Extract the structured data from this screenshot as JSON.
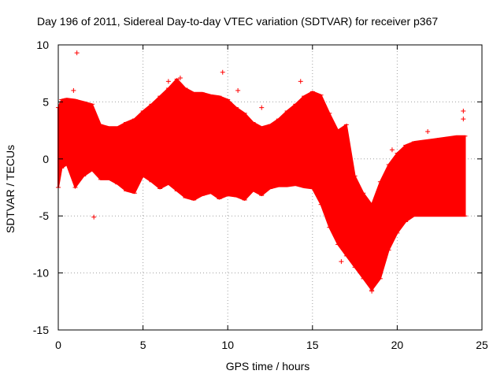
{
  "chart_data": {
    "type": "scatter",
    "title": "Day 196 of 2011, Sidereal Day-to-day VTEC variation (SDTVAR) for receiver p367",
    "xlabel": "GPS time / hours",
    "ylabel": "SDTVAR / TECUs",
    "xlim": [
      0,
      25
    ],
    "ylim": [
      -15,
      10
    ],
    "x_ticks": [
      0,
      5,
      10,
      15,
      20,
      25
    ],
    "y_ticks": [
      -15,
      -10,
      -5,
      0,
      5,
      10
    ],
    "x_tick_labels": [
      "0",
      "5",
      "10",
      "15",
      "20",
      "25"
    ],
    "y_tick_labels": [
      "-15",
      "-10",
      "-5",
      "0",
      "5",
      "10"
    ],
    "grid": true,
    "series": [
      {
        "name": "SDTVAR",
        "color": "#ff0000",
        "marker": "plus",
        "band": {
          "x": [
            0.0,
            0.2,
            0.5,
            1.0,
            1.5,
            2.0,
            2.5,
            3.0,
            3.5,
            4.0,
            4.5,
            5.0,
            5.5,
            6.0,
            6.5,
            7.0,
            7.5,
            8.0,
            8.5,
            9.0,
            9.5,
            10.0,
            10.5,
            11.0,
            11.5,
            12.0,
            12.5,
            13.0,
            13.5,
            14.0,
            14.5,
            15.0,
            15.5,
            16.0,
            16.5,
            17.0,
            17.5,
            18.0,
            18.5,
            19.0,
            19.5,
            20.0,
            20.5,
            21.0,
            21.5,
            22.0,
            22.5,
            23.0,
            23.5,
            24.0
          ],
          "upper": [
            4.5,
            5.2,
            5.3,
            5.2,
            5.0,
            4.8,
            3.0,
            2.8,
            2.8,
            3.2,
            3.5,
            4.2,
            4.8,
            5.5,
            6.2,
            7.0,
            6.2,
            5.8,
            5.8,
            5.6,
            5.5,
            5.2,
            4.5,
            4.0,
            3.2,
            2.8,
            3.0,
            3.5,
            4.2,
            4.8,
            5.5,
            5.9,
            5.6,
            4.0,
            2.5,
            3.0,
            -1.5,
            -3.0,
            -4.0,
            -2.0,
            -0.5,
            0.5,
            1.2,
            1.5,
            1.6,
            1.7,
            1.8,
            1.9,
            2.0,
            2.0
          ],
          "lower": [
            -2.5,
            -0.8,
            -0.5,
            -2.5,
            -1.5,
            -1.0,
            -1.8,
            -1.8,
            -2.2,
            -2.8,
            -3.0,
            -1.5,
            -2.0,
            -2.6,
            -2.2,
            -2.8,
            -3.4,
            -3.6,
            -3.2,
            -3.0,
            -3.5,
            -3.2,
            -3.3,
            -3.6,
            -2.8,
            -3.2,
            -2.6,
            -2.4,
            -2.4,
            -2.3,
            -2.5,
            -2.6,
            -4.0,
            -6.0,
            -7.5,
            -8.5,
            -9.5,
            -10.5,
            -11.5,
            -10.5,
            -8.0,
            -6.5,
            -5.5,
            -5.0,
            -5.0,
            -5.0,
            -5.0,
            -5.0,
            -5.0,
            -5.0
          ]
        },
        "outliers": [
          {
            "x": 1.1,
            "y": 9.3
          },
          {
            "x": 2.1,
            "y": -5.1
          },
          {
            "x": 6.5,
            "y": 6.8
          },
          {
            "x": 9.7,
            "y": 7.6
          },
          {
            "x": 14.3,
            "y": 6.8
          },
          {
            "x": 16.7,
            "y": -9.0
          },
          {
            "x": 23.9,
            "y": 4.2
          },
          {
            "x": 23.9,
            "y": 3.5
          },
          {
            "x": 0.9,
            "y": 6.0
          },
          {
            "x": 7.2,
            "y": 7.1
          },
          {
            "x": 10.6,
            "y": 6.0
          },
          {
            "x": 12.0,
            "y": 4.5
          },
          {
            "x": 18.5,
            "y": -11.6
          },
          {
            "x": 19.7,
            "y": 0.8
          },
          {
            "x": 21.8,
            "y": 2.4
          }
        ]
      }
    ]
  }
}
